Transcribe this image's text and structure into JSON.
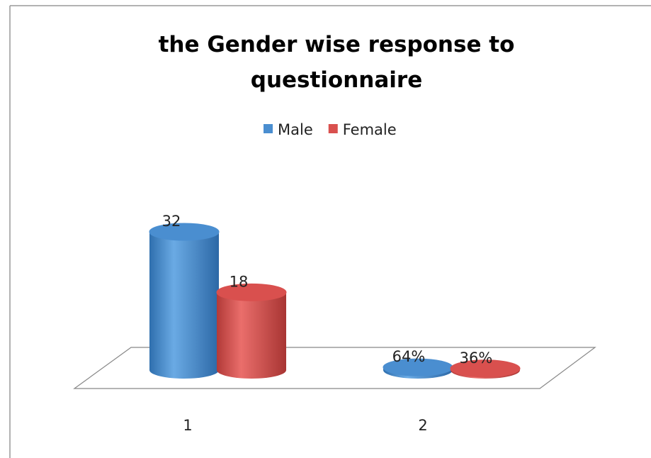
{
  "chart_data": {
    "type": "bar3d",
    "title": "the Gender wise response to questionnaire",
    "categories": [
      "1",
      "2"
    ],
    "series": [
      {
        "name": "Male",
        "color": "#4a8ed0",
        "values": [
          32,
          0.64
        ],
        "value_labels": [
          "32",
          "64%"
        ]
      },
      {
        "name": "Female",
        "color": "#d9504e",
        "values": [
          18,
          0.36
        ],
        "value_labels": [
          "18",
          "36%"
        ]
      }
    ],
    "legend": "top"
  }
}
